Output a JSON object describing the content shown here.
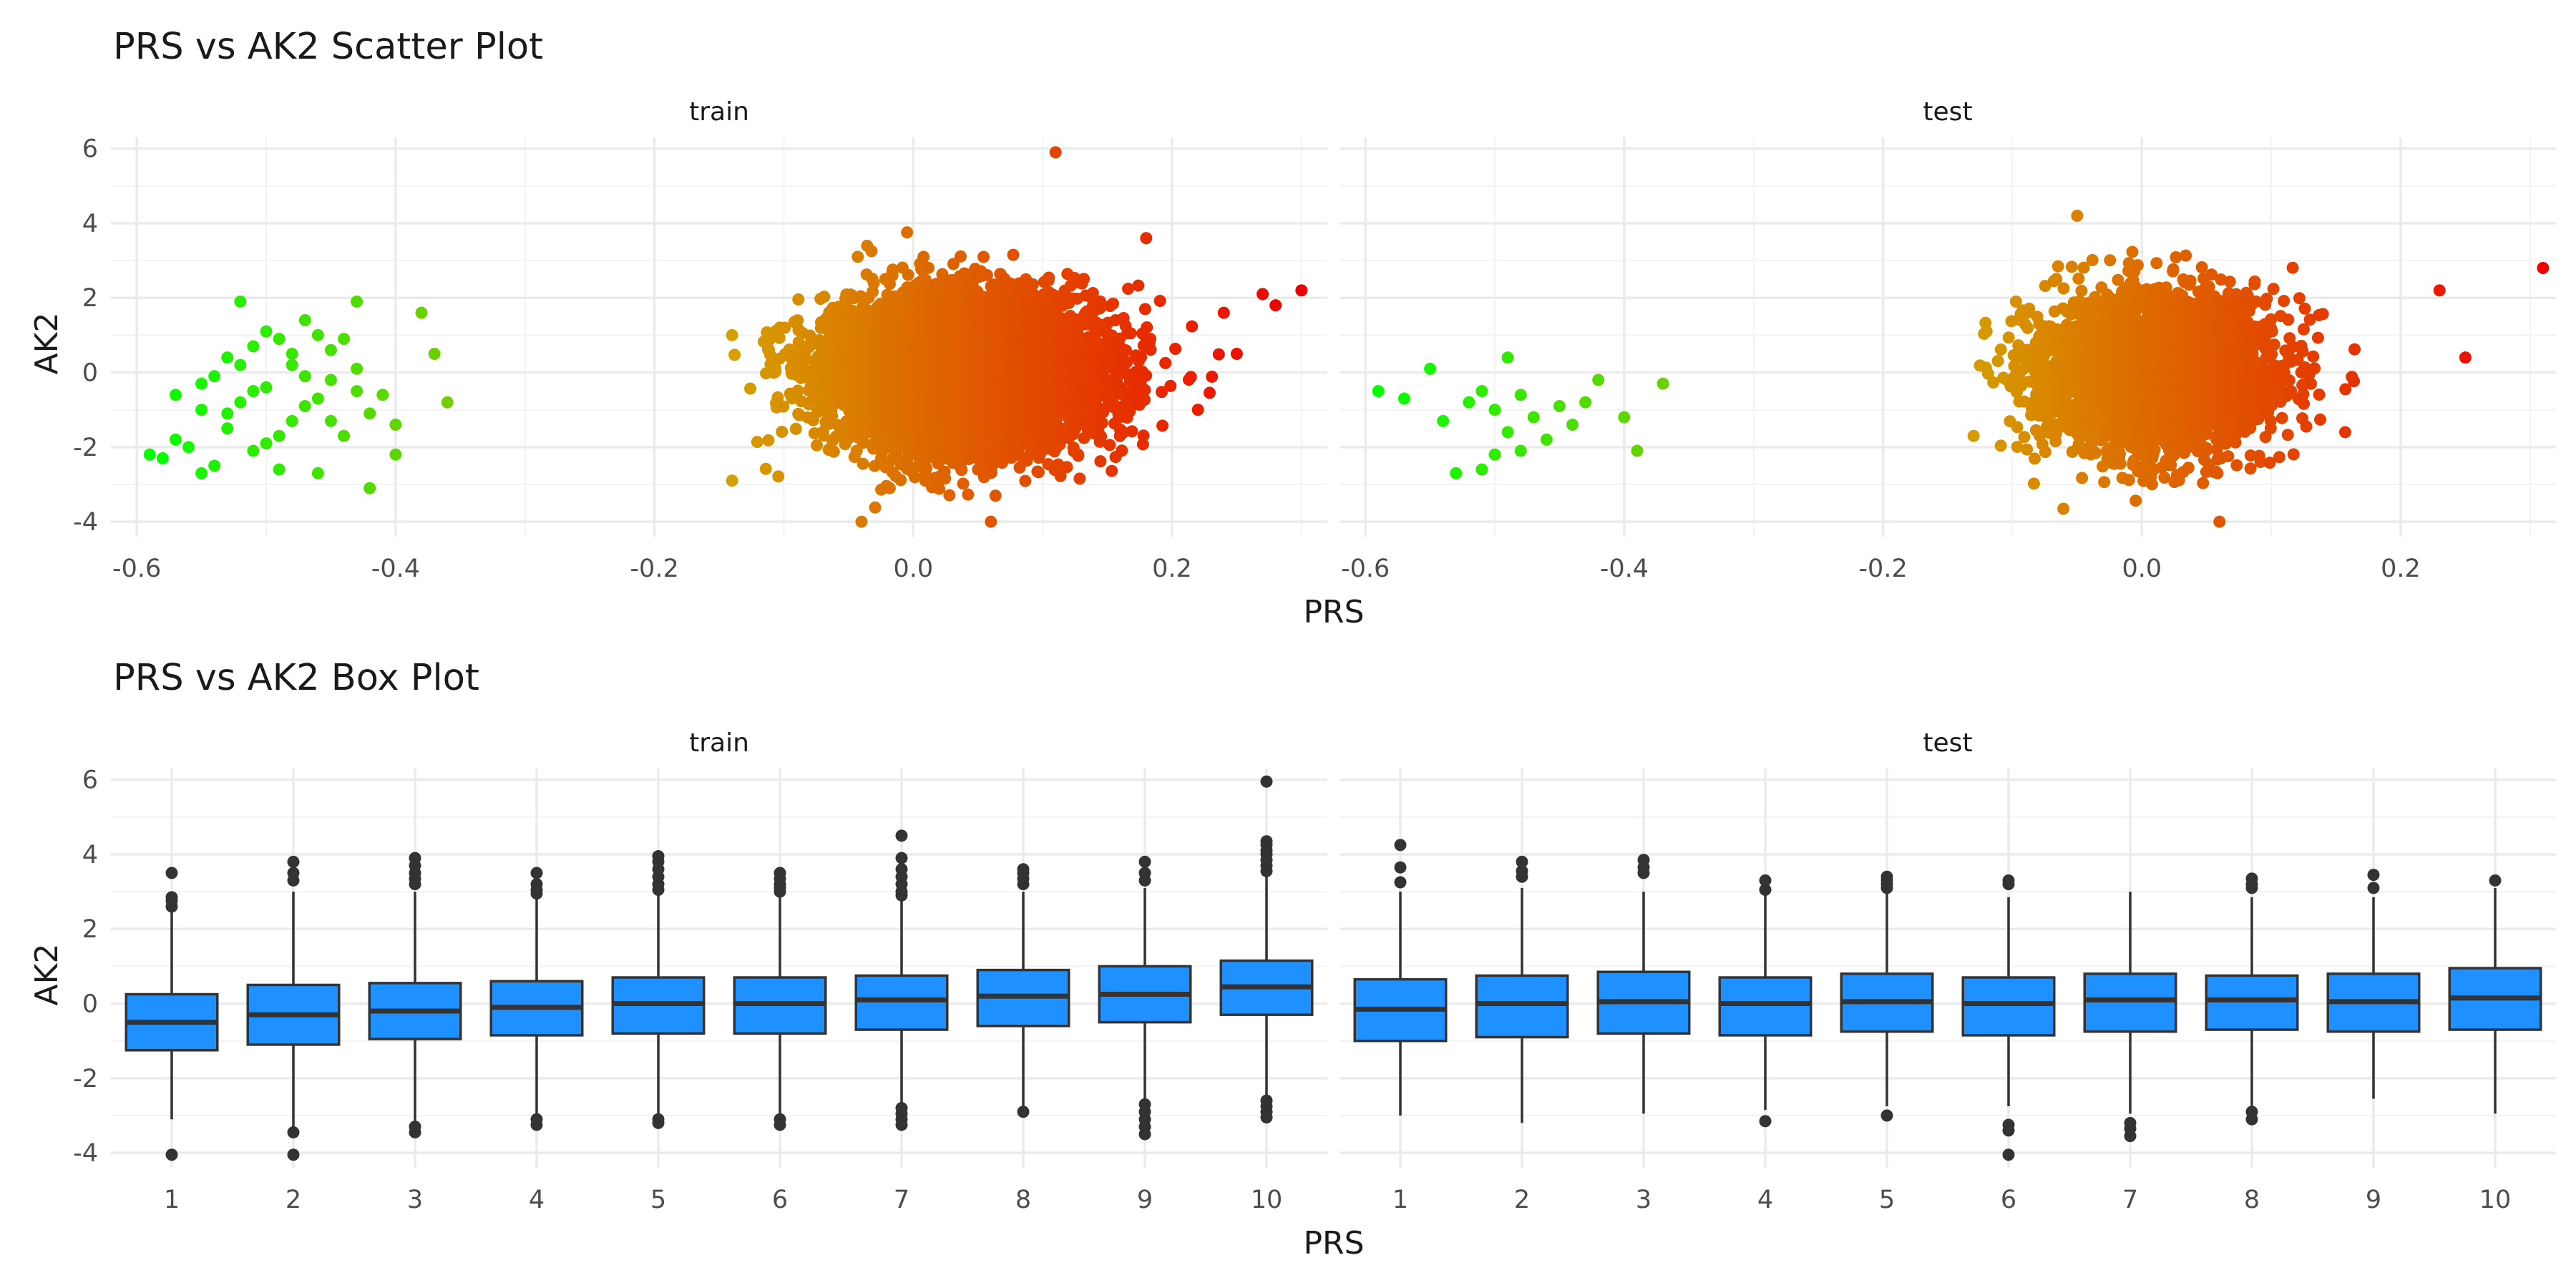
{
  "chart_data": [
    {
      "type": "scatter",
      "title": "PRS vs AK2 Scatter Plot",
      "xlabel": "PRS",
      "ylabel": "AK2",
      "facets": [
        "train",
        "test"
      ],
      "xlim": [
        -0.62,
        0.32
      ],
      "ylim": [
        -4.4,
        6.3
      ],
      "xticks": [
        -0.6,
        -0.4,
        -0.2,
        0.0,
        0.2
      ],
      "xtick_labels": [
        "-0.6",
        "-0.4",
        "-0.2",
        "0.0",
        "0.2"
      ],
      "yticks": [
        -4,
        -2,
        0,
        2,
        4,
        6
      ],
      "ytick_labels": [
        "-4",
        "-2",
        "0",
        "2",
        "4",
        "6"
      ],
      "color_scale": {
        "low_value": -0.6,
        "high_value": 0.3,
        "low_color": "#00ff00",
        "mid_color": "#d4a300",
        "high_color": "#ee0000"
      },
      "grid": true,
      "legend": "none",
      "series": [
        {
          "facet": "train",
          "points": [
            [
              -0.59,
              -2.2
            ],
            [
              -0.58,
              -2.3
            ],
            [
              -0.57,
              -1.8
            ],
            [
              -0.57,
              -0.6
            ],
            [
              -0.56,
              -2.0
            ],
            [
              -0.55,
              -2.7
            ],
            [
              -0.55,
              -1.0
            ],
            [
              -0.54,
              -2.5
            ],
            [
              -0.54,
              -0.1
            ],
            [
              -0.53,
              0.4
            ],
            [
              -0.53,
              -1.5
            ],
            [
              -0.52,
              1.9
            ],
            [
              -0.52,
              -0.8
            ],
            [
              -0.51,
              0.7
            ],
            [
              -0.51,
              -2.1
            ],
            [
              -0.5,
              1.1
            ],
            [
              -0.5,
              -0.4
            ],
            [
              -0.49,
              -2.6
            ],
            [
              -0.49,
              0.9
            ],
            [
              -0.48,
              -1.3
            ],
            [
              -0.48,
              0.2
            ],
            [
              -0.47,
              1.4
            ],
            [
              -0.47,
              -0.9
            ],
            [
              -0.46,
              1.0
            ],
            [
              -0.46,
              -2.7
            ],
            [
              -0.45,
              -0.2
            ],
            [
              -0.45,
              0.6
            ],
            [
              -0.44,
              -1.7
            ],
            [
              -0.43,
              -0.5
            ],
            [
              -0.43,
              1.9
            ],
            [
              -0.42,
              -3.1
            ],
            [
              -0.42,
              -1.1
            ],
            [
              -0.41,
              -0.6
            ],
            [
              -0.4,
              -2.2
            ],
            [
              -0.4,
              -1.4
            ],
            [
              -0.38,
              1.6
            ],
            [
              -0.37,
              0.5
            ],
            [
              -0.36,
              -0.8
            ],
            [
              -0.55,
              -0.3
            ],
            [
              -0.53,
              -1.1
            ],
            [
              -0.51,
              -0.5
            ],
            [
              -0.49,
              -1.7
            ],
            [
              -0.47,
              -0.1
            ],
            [
              -0.45,
              -1.3
            ],
            [
              -0.43,
              0.1
            ],
            [
              -0.5,
              -1.9
            ],
            [
              -0.52,
              0.2
            ],
            [
              -0.48,
              0.5
            ],
            [
              -0.46,
              -0.7
            ],
            [
              -0.44,
              0.9
            ]
          ],
          "cloud": {
            "n": 7000,
            "x_mean": 0.04,
            "x_sd": 0.05,
            "y_mean": 0.0,
            "y_sd": 1.0
          },
          "outliers": [
            [
              0.11,
              5.9
            ],
            [
              -0.14,
              -2.9
            ],
            [
              -0.14,
              1.0
            ],
            [
              0.3,
              2.2
            ],
            [
              0.28,
              1.8
            ],
            [
              0.27,
              2.1
            ],
            [
              0.22,
              -1.0
            ],
            [
              0.06,
              -4.0
            ],
            [
              -0.04,
              -4.0
            ],
            [
              0.18,
              3.6
            ],
            [
              0.25,
              0.5
            ],
            [
              0.24,
              1.6
            ]
          ]
        },
        {
          "facet": "test",
          "points": [
            [
              -0.59,
              -0.5
            ],
            [
              -0.57,
              -0.7
            ],
            [
              -0.55,
              0.1
            ],
            [
              -0.54,
              -1.3
            ],
            [
              -0.53,
              -2.7
            ],
            [
              -0.52,
              -0.8
            ],
            [
              -0.51,
              -0.5
            ],
            [
              -0.51,
              -2.6
            ],
            [
              -0.5,
              -1.0
            ],
            [
              -0.5,
              -2.2
            ],
            [
              -0.49,
              -1.6
            ],
            [
              -0.49,
              0.4
            ],
            [
              -0.48,
              -0.6
            ],
            [
              -0.48,
              -2.1
            ],
            [
              -0.47,
              -1.2
            ],
            [
              -0.46,
              -1.8
            ],
            [
              -0.45,
              -0.9
            ],
            [
              -0.44,
              -1.4
            ],
            [
              -0.43,
              -0.8
            ],
            [
              -0.42,
              -0.2
            ],
            [
              -0.4,
              -1.2
            ],
            [
              -0.39,
              -2.1
            ],
            [
              -0.37,
              -0.3
            ]
          ],
          "cloud": {
            "n": 3500,
            "x_mean": 0.01,
            "x_sd": 0.045,
            "y_mean": 0.0,
            "y_sd": 1.0
          },
          "outliers": [
            [
              0.31,
              2.8
            ],
            [
              0.25,
              0.4
            ],
            [
              -0.13,
              -1.7
            ],
            [
              -0.05,
              4.2
            ],
            [
              0.23,
              2.2
            ],
            [
              0.06,
              -4.0
            ],
            [
              -0.12,
              1.1
            ]
          ]
        }
      ]
    },
    {
      "type": "box",
      "title": "PRS vs AK2 Box Plot",
      "xlabel": "PRS",
      "ylabel": "AK2",
      "facets": [
        "train",
        "test"
      ],
      "categories": [
        "1",
        "2",
        "3",
        "4",
        "5",
        "6",
        "7",
        "8",
        "9",
        "10"
      ],
      "ylim": [
        -4.4,
        6.3
      ],
      "yticks": [
        -4,
        -2,
        0,
        2,
        4,
        6
      ],
      "ytick_labels": [
        "-4",
        "-2",
        "0",
        "2",
        "4",
        "6"
      ],
      "fill_color": "#1e90ff",
      "line_color": "#333333",
      "grid": true,
      "series": [
        {
          "facet": "train",
          "boxes": [
            {
              "q1": -1.25,
              "median": -0.5,
              "q3": 0.25,
              "wlo": -3.1,
              "whi": 2.45,
              "outliers": [
                2.6,
                2.75,
                2.85,
                3.5,
                -4.05
              ]
            },
            {
              "q1": -1.1,
              "median": -0.3,
              "q3": 0.5,
              "wlo": -3.3,
              "whi": 3.0,
              "outliers": [
                3.3,
                3.5,
                3.8,
                -3.45,
                -4.05
              ]
            },
            {
              "q1": -0.95,
              "median": -0.2,
              "q3": 0.55,
              "wlo": -3.15,
              "whi": 3.0,
              "outliers": [
                3.2,
                3.35,
                3.5,
                3.7,
                3.9,
                -3.3,
                -3.45
              ]
            },
            {
              "q1": -0.85,
              "median": -0.1,
              "q3": 0.6,
              "wlo": -3.0,
              "whi": 2.8,
              "outliers": [
                2.95,
                3.05,
                3.2,
                3.5,
                -3.1,
                -3.25
              ]
            },
            {
              "q1": -0.8,
              "median": 0.0,
              "q3": 0.7,
              "wlo": -3.0,
              "whi": 2.9,
              "outliers": [
                3.05,
                3.2,
                3.4,
                3.6,
                3.8,
                3.95,
                -3.1,
                -3.2
              ]
            },
            {
              "q1": -0.8,
              "median": 0.0,
              "q3": 0.7,
              "wlo": -3.0,
              "whi": 2.85,
              "outliers": [
                3.0,
                3.1,
                3.2,
                3.35,
                3.5,
                -3.1,
                -3.25
              ]
            },
            {
              "q1": -0.7,
              "median": 0.1,
              "q3": 0.75,
              "wlo": -2.7,
              "whi": 2.75,
              "outliers": [
                2.9,
                3.0,
                3.2,
                3.4,
                3.6,
                3.9,
                4.5,
                -2.8,
                -2.95,
                -3.1,
                -3.25
              ]
            },
            {
              "q1": -0.6,
              "median": 0.2,
              "q3": 0.9,
              "wlo": -2.8,
              "whi": 3.0,
              "outliers": [
                3.2,
                3.35,
                3.5,
                3.6,
                -2.9
              ]
            },
            {
              "q1": -0.5,
              "median": 0.25,
              "q3": 1.0,
              "wlo": -2.6,
              "whi": 3.1,
              "outliers": [
                3.3,
                3.5,
                3.8,
                -2.7,
                -2.9,
                -3.1,
                -3.3,
                -3.5
              ]
            },
            {
              "q1": -0.3,
              "median": 0.45,
              "q3": 1.15,
              "wlo": -2.45,
              "whi": 3.4,
              "outliers": [
                3.55,
                3.7,
                3.85,
                4.0,
                4.1,
                4.25,
                4.35,
                5.95,
                -2.6,
                -2.75,
                -2.9,
                -3.05
              ]
            }
          ]
        },
        {
          "facet": "test",
          "boxes": [
            {
              "q1": -1.0,
              "median": -0.15,
              "q3": 0.65,
              "wlo": -3.0,
              "whi": 3.0,
              "outliers": [
                3.25,
                3.65,
                4.25
              ]
            },
            {
              "q1": -0.9,
              "median": 0.0,
              "q3": 0.75,
              "wlo": -3.2,
              "whi": 3.1,
              "outliers": [
                3.4,
                3.55,
                3.8
              ]
            },
            {
              "q1": -0.8,
              "median": 0.05,
              "q3": 0.85,
              "wlo": -2.95,
              "whi": 3.0,
              "outliers": [
                3.5,
                3.65,
                3.85
              ]
            },
            {
              "q1": -0.85,
              "median": 0.0,
              "q3": 0.7,
              "wlo": -2.85,
              "whi": 2.9,
              "outliers": [
                3.05,
                3.3,
                -3.15
              ]
            },
            {
              "q1": -0.75,
              "median": 0.05,
              "q3": 0.8,
              "wlo": -2.75,
              "whi": 2.95,
              "outliers": [
                3.1,
                3.2,
                3.3,
                3.4,
                -3.0
              ]
            },
            {
              "q1": -0.85,
              "median": 0.0,
              "q3": 0.7,
              "wlo": -2.75,
              "whi": 2.85,
              "outliers": [
                3.2,
                3.3,
                -3.25,
                -3.4,
                -4.05
              ]
            },
            {
              "q1": -0.75,
              "median": 0.1,
              "q3": 0.8,
              "wlo": -2.95,
              "whi": 3.0,
              "outliers": [
                -3.2,
                -3.35,
                -3.55
              ]
            },
            {
              "q1": -0.7,
              "median": 0.1,
              "q3": 0.75,
              "wlo": -2.75,
              "whi": 2.85,
              "outliers": [
                3.1,
                3.2,
                3.35,
                -2.9,
                -3.1
              ]
            },
            {
              "q1": -0.75,
              "median": 0.05,
              "q3": 0.8,
              "wlo": -2.55,
              "whi": 2.85,
              "outliers": [
                3.1,
                3.45
              ]
            },
            {
              "q1": -0.7,
              "median": 0.15,
              "q3": 0.95,
              "wlo": -2.95,
              "whi": 3.1,
              "outliers": [
                3.3
              ]
            }
          ]
        }
      ]
    }
  ]
}
